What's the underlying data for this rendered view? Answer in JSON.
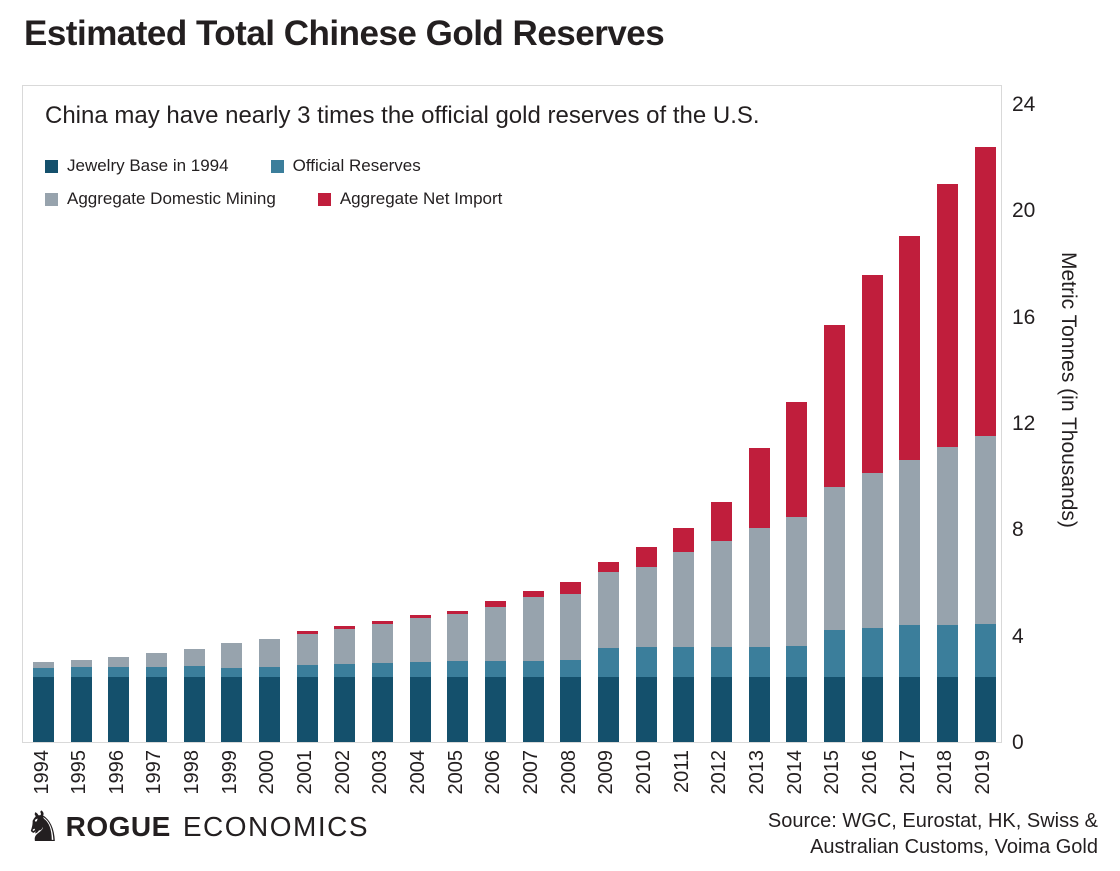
{
  "page": {
    "title": "Estimated Total Chinese Gold Reserves"
  },
  "footer": {
    "knight_icon": "♞",
    "logo_bold": "ROGUE",
    "logo_light": "ECONOMICS",
    "source_line1": "Source: WGC, Eurostat, HK, Swiss &",
    "source_line2": "Australian Customs, Voima Gold"
  },
  "colors": {
    "jewelry_base": "#14506C",
    "official_reserves": "#3B7E9B",
    "domestic_mining": "#97A3AD",
    "net_import": "#C01E3C",
    "text": "#231F20",
    "box_border": "#D9D9D9"
  },
  "chart_data": {
    "type": "bar",
    "stacked": true,
    "title": "Estimated Total Chinese Gold Reserves",
    "subtitle": "China may have nearly 3 times the official gold reserves of the U.S.",
    "ylabel": "Metric Tonnes (in Thousands)",
    "xlabel": "",
    "grid": false,
    "legend_position": "top-left",
    "yticks": [
      0,
      4,
      8,
      12,
      16,
      20,
      24
    ],
    "ylim": [
      0,
      24.75
    ],
    "categories": [
      "1994",
      "1995",
      "1996",
      "1997",
      "1998",
      "1999",
      "2000",
      "2001",
      "2002",
      "2003",
      "2004",
      "2005",
      "2006",
      "2007",
      "2008",
      "2009",
      "2010",
      "2011",
      "2012",
      "2013",
      "2014",
      "2015",
      "2016",
      "2017",
      "2018",
      "2019"
    ],
    "series": [
      {
        "name": "Jewelry Base in 1994",
        "color": "#14506C",
        "values": [
          2.45,
          2.45,
          2.45,
          2.45,
          2.45,
          2.45,
          2.45,
          2.45,
          2.45,
          2.45,
          2.45,
          2.45,
          2.45,
          2.45,
          2.45,
          2.45,
          2.45,
          2.45,
          2.45,
          2.45,
          2.45,
          2.45,
          2.45,
          2.45,
          2.45,
          2.45
        ]
      },
      {
        "name": "Official Reserves",
        "color": "#3B7E9B",
        "values": [
          0.35,
          0.37,
          0.37,
          0.37,
          0.4,
          0.34,
          0.36,
          0.45,
          0.49,
          0.53,
          0.55,
          0.58,
          0.58,
          0.58,
          0.62,
          1.08,
          1.12,
          1.12,
          1.12,
          1.12,
          1.18,
          1.78,
          1.85,
          1.94,
          1.94,
          2.0
        ]
      },
      {
        "name": "Aggregate Domestic Mining",
        "color": "#97A3AD",
        "values": [
          0.2,
          0.25,
          0.38,
          0.54,
          0.66,
          0.95,
          1.08,
          1.17,
          1.32,
          1.47,
          1.67,
          1.8,
          2.05,
          2.43,
          2.51,
          2.87,
          3.02,
          3.59,
          3.99,
          4.47,
          4.85,
          5.38,
          5.81,
          6.23,
          6.7,
          7.05
        ]
      },
      {
        "name": "Aggregate Net Import",
        "color": "#C01E3C",
        "values": [
          0,
          0,
          0,
          0,
          0,
          0,
          0,
          0.09,
          0.09,
          0.1,
          0.12,
          0.09,
          0.21,
          0.21,
          0.44,
          0.38,
          0.75,
          0.9,
          1.48,
          3.02,
          4.3,
          6.07,
          7.45,
          8.42,
          9.9,
          10.9
        ]
      }
    ]
  }
}
